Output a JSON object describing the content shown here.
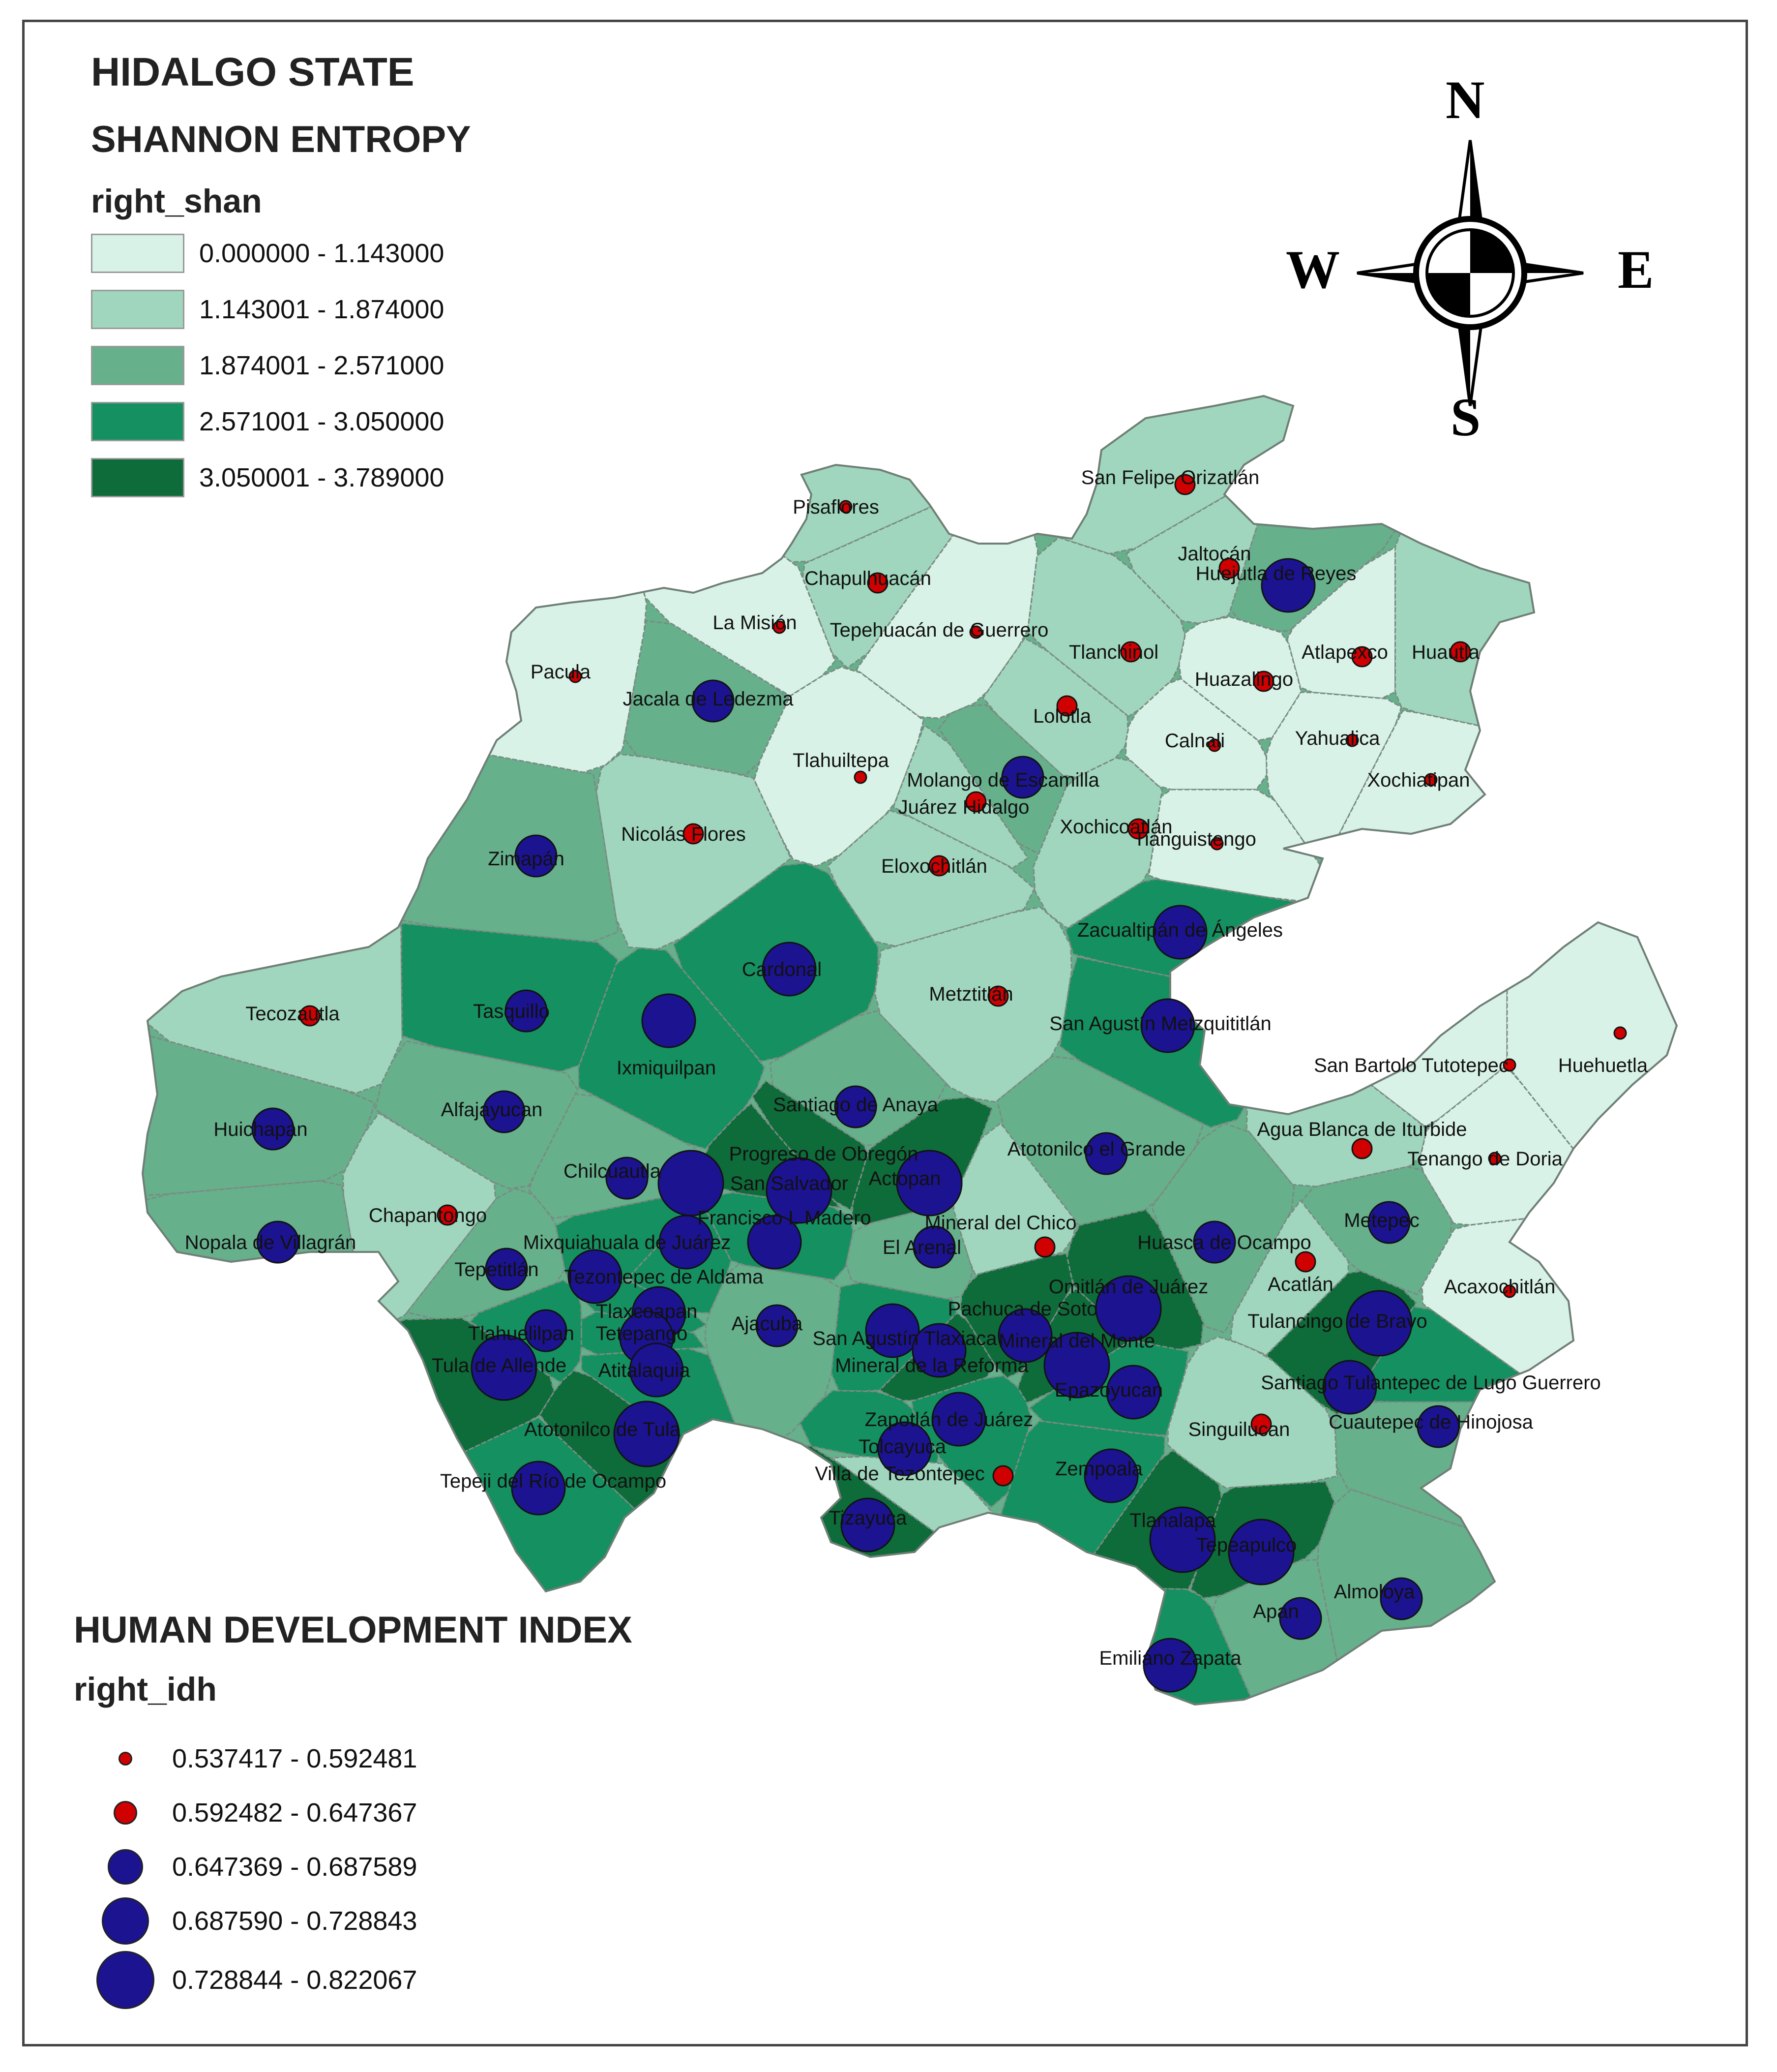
{
  "map_title": "HIDALGO STATE",
  "shannon_title": "SHANNON ENTROPY",
  "shannon_field": "right_shan",
  "shannon_classes": [
    {
      "label": "0.000000 - 1.143000",
      "color": "#d9f2e8"
    },
    {
      "label": "1.143001 - 1.874000",
      "color": "#a0d6bd"
    },
    {
      "label": "1.874001 - 2.571000",
      "color": "#66b08c"
    },
    {
      "label": "2.571001 - 3.050000",
      "color": "#159060"
    },
    {
      "label": "3.050001 - 3.789000",
      "color": "#0e6b3a"
    }
  ],
  "hdi_title": "HUMAN DEVELOPMENT INDEX",
  "hdi_field": "right_idh",
  "hdi_classes": [
    {
      "label": "0.537417 - 0.592481",
      "color": "#d00000"
    },
    {
      "label": "0.592482 - 0.647367",
      "color": "#d00000"
    },
    {
      "label": "0.647369 - 0.687589",
      "color": "#1c1390"
    },
    {
      "label": "0.687590 - 0.728843",
      "color": "#1c1390"
    },
    {
      "label": "0.728844 - 0.822067",
      "color": "#1c1390"
    }
  ],
  "compass": {
    "n": "N",
    "s": "S",
    "e": "E",
    "w": "W"
  },
  "municipalities": [
    {
      "name": "San Felipe Orizatlán",
      "cls": 1
    },
    {
      "name": "Pisaflores",
      "cls": 1
    },
    {
      "name": "Jaltocán",
      "cls": 1
    },
    {
      "name": "Huejutla de Reyes",
      "cls": 2
    },
    {
      "name": "Chapulhuacán",
      "cls": 1
    },
    {
      "name": "La Misión",
      "cls": 0
    },
    {
      "name": "Tepehuacán de Guerrero",
      "cls": 0
    },
    {
      "name": "Tlanchinol",
      "cls": 1
    },
    {
      "name": "Atlapexco",
      "cls": 0
    },
    {
      "name": "Huautla",
      "cls": 1
    },
    {
      "name": "Pacula",
      "cls": 0
    },
    {
      "name": "Jacala de Ledezma",
      "cls": 2
    },
    {
      "name": "Huazalingo",
      "cls": 0
    },
    {
      "name": "Lolotla",
      "cls": 1
    },
    {
      "name": "Calnali",
      "cls": 0
    },
    {
      "name": "Yahualica",
      "cls": 0
    },
    {
      "name": "Tlahuiltepa",
      "cls": 0
    },
    {
      "name": "Molango de Escamilla",
      "cls": 2
    },
    {
      "name": "Xochiatipan",
      "cls": 0
    },
    {
      "name": "Juárez Hidalgo",
      "cls": 1
    },
    {
      "name": "Xochicoatlán",
      "cls": 1
    },
    {
      "name": "Nicolás Flores",
      "cls": 1
    },
    {
      "name": "Tianguistengo",
      "cls": 0
    },
    {
      "name": "Zimapán",
      "cls": 2
    },
    {
      "name": "Eloxochitlán",
      "cls": 1
    },
    {
      "name": "Zacualtipán de Ángeles",
      "cls": 3
    },
    {
      "name": "Cardonal",
      "cls": 3
    },
    {
      "name": "Metztitlán",
      "cls": 1
    },
    {
      "name": "Tecozautla",
      "cls": 1
    },
    {
      "name": "Tasquillo",
      "cls": 3
    },
    {
      "name": "Ixmiquilpan",
      "cls": 3
    },
    {
      "name": "San Agustín Metzquititlán",
      "cls": 3
    },
    {
      "name": "San Bartolo Tutotepec",
      "cls": 0
    },
    {
      "name": "Huehuetla",
      "cls": 0
    },
    {
      "name": "Santiago de Anaya",
      "cls": 2
    },
    {
      "name": "Alfajayucan",
      "cls": 2
    },
    {
      "name": "Huichapan",
      "cls": 2
    },
    {
      "name": "Agua Blanca de Iturbide",
      "cls": 1
    },
    {
      "name": "Progreso de Obregón",
      "cls": 4
    },
    {
      "name": "Atotonilco el Grande",
      "cls": 2
    },
    {
      "name": "Tenango de Doria",
      "cls": 0
    },
    {
      "name": "Chilcuautla",
      "cls": 2
    },
    {
      "name": "San Salvador",
      "cls": 4
    },
    {
      "name": "Actopan",
      "cls": 4
    },
    {
      "name": "Chapantongo",
      "cls": 1
    },
    {
      "name": "Francisco I. Madero",
      "cls": 3
    },
    {
      "name": "Mineral del Chico",
      "cls": 1
    },
    {
      "name": "Metepec",
      "cls": 2
    },
    {
      "name": "Nopala de Villagrán",
      "cls": 2
    },
    {
      "name": "Mixquiahuala de Juárez",
      "cls": 3
    },
    {
      "name": "El Arenal",
      "cls": 2
    },
    {
      "name": "Huasca de Ocampo",
      "cls": 2
    },
    {
      "name": "Tepetitlán",
      "cls": 2
    },
    {
      "name": "Acatlán",
      "cls": 1
    },
    {
      "name": "Tezontepec de Aldama",
      "cls": 3
    },
    {
      "name": "Omitlán de Juárez",
      "cls": 4
    },
    {
      "name": "Acaxochitlán",
      "cls": 0
    },
    {
      "name": "Tlaxcoapan",
      "cls": 3
    },
    {
      "name": "Tulancingo de Bravo",
      "cls": 4
    },
    {
      "name": "Tetepango",
      "cls": 3
    },
    {
      "name": "Tlahuelilpan",
      "cls": 3
    },
    {
      "name": "Ajacuba",
      "cls": 2
    },
    {
      "name": "San Agustín Tlaxiaca",
      "cls": 3
    },
    {
      "name": "Pachuca de Soto",
      "cls": 4
    },
    {
      "name": "Mineral del Monte",
      "cls": 4
    },
    {
      "name": "Tula de Allende",
      "cls": 4
    },
    {
      "name": "Atitalaquia",
      "cls": 3
    },
    {
      "name": "Mineral de la Reforma",
      "cls": 4
    },
    {
      "name": "Epazoyucan",
      "cls": 3
    },
    {
      "name": "Santiago Tulantepec de Lugo Guerrero",
      "cls": 3
    },
    {
      "name": "Zapotlán de Juárez",
      "cls": 3
    },
    {
      "name": "Cuautepec de Hinojosa",
      "cls": 2
    },
    {
      "name": "Atotonilco de Tula",
      "cls": 4
    },
    {
      "name": "Singuilucan",
      "cls": 1
    },
    {
      "name": "Tolcayuca",
      "cls": 3
    },
    {
      "name": "Villa de Tezontepec",
      "cls": 1
    },
    {
      "name": "Zempoala",
      "cls": 3
    },
    {
      "name": "Tepeji del Río de Ocampo",
      "cls": 3
    },
    {
      "name": "Tizayuca",
      "cls": 4
    },
    {
      "name": "Tlanalapa",
      "cls": 4
    },
    {
      "name": "Tepeapulco",
      "cls": 4
    },
    {
      "name": "Almoloya",
      "cls": 2
    },
    {
      "name": "Apan",
      "cls": 2
    },
    {
      "name": "Emiliano Zapata",
      "cls": 3
    }
  ]
}
